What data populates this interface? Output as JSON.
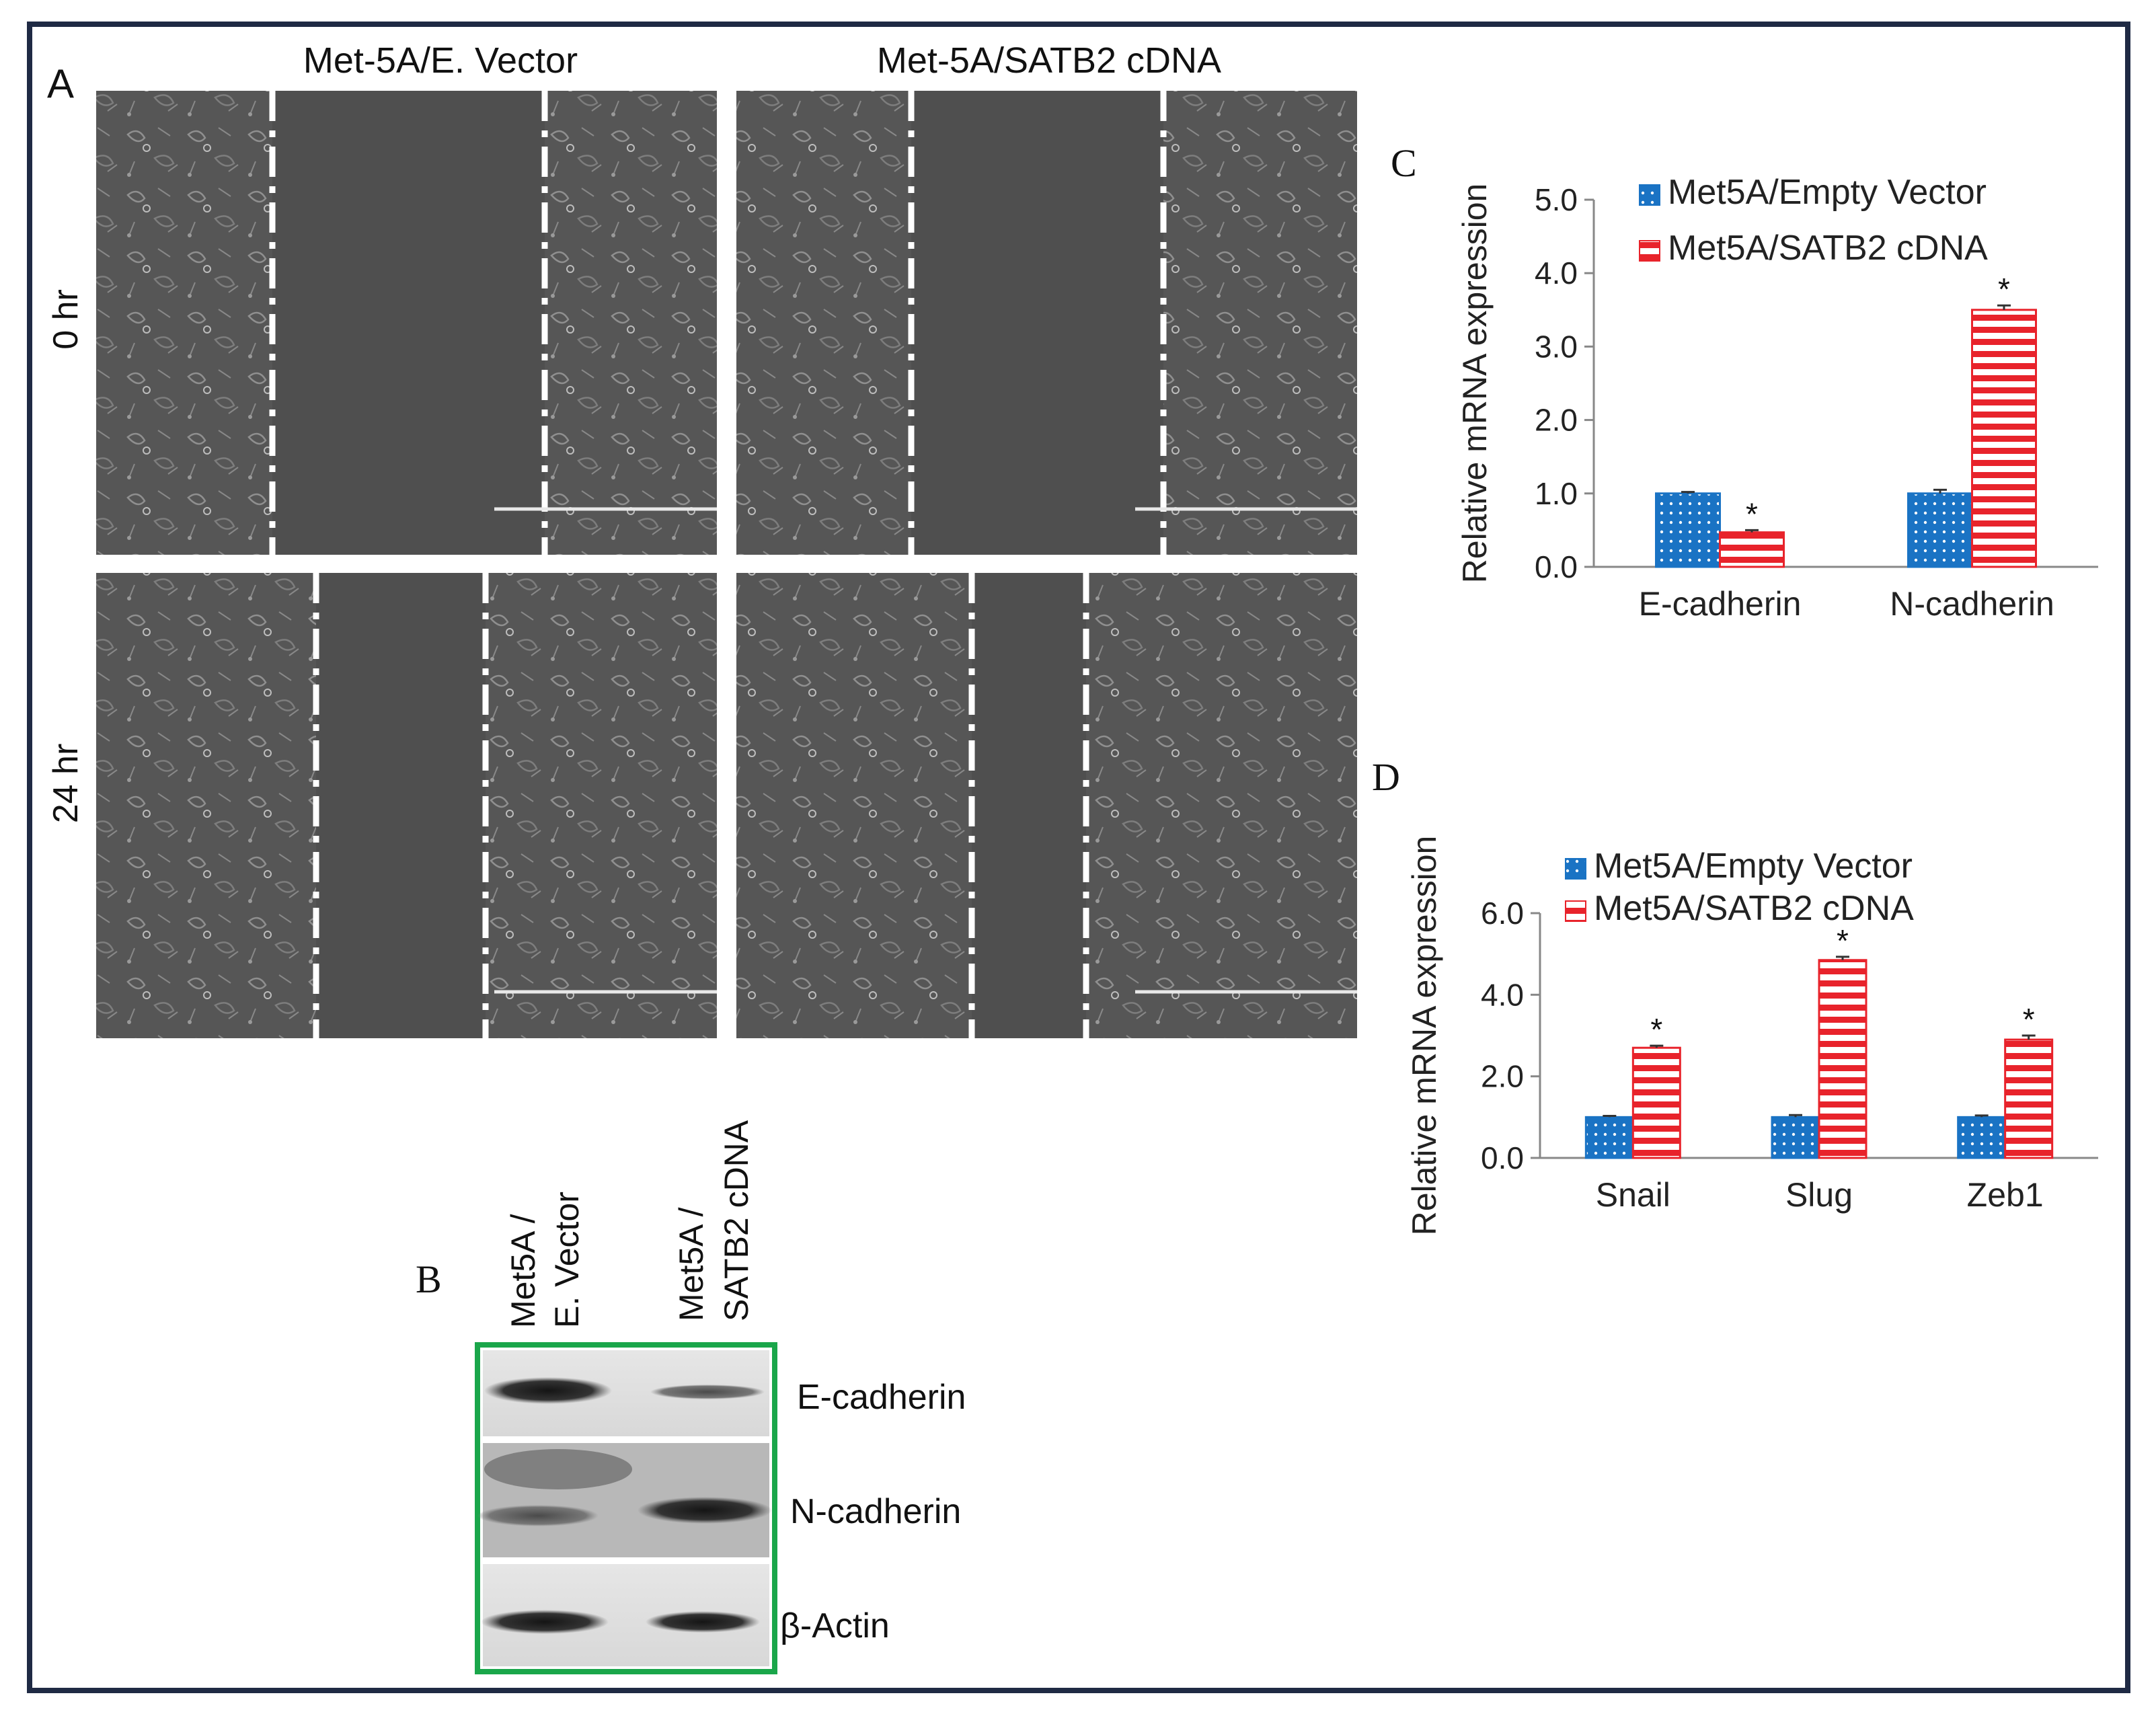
{
  "panel_labels": {
    "A": "A",
    "B": "B",
    "C": "C",
    "D": "D"
  },
  "panel_a": {
    "columns": [
      "Met-5A/E. Vector",
      "Met-5A/SATB2 cDNA"
    ],
    "rows": [
      "0 hr",
      "24 hr"
    ]
  },
  "panel_b": {
    "lane_labels": [
      {
        "line1": "Met5A /",
        "line2": "E. Vector"
      },
      {
        "line1": "Met5A /",
        "line2": "SATB2 cDNA"
      }
    ],
    "blot_labels": [
      "E-cadherin",
      "N-cadherin",
      "β-Actin"
    ],
    "frame_color": "#1aa64a"
  },
  "colors": {
    "empty_vector": "#1a73c4",
    "satb2": "#e8232b",
    "frame": "#1f2a44"
  },
  "chart_data": [
    {
      "type": "bar",
      "panel": "C",
      "ylabel": "Relative  mRNA  expression",
      "categories": [
        "E-cadherin",
        "N-cadherin"
      ],
      "ylim": [
        0,
        5
      ],
      "yticks": [
        "0.0",
        "1.0",
        "2.0",
        "3.0",
        "4.0",
        "5.0"
      ],
      "series": [
        {
          "name": "Met5A/Empty Vector",
          "values": [
            1.0,
            1.0
          ],
          "errors": [
            0.02,
            0.05
          ]
        },
        {
          "name": "Met5A/SATB2 cDNA",
          "values": [
            0.47,
            3.5
          ],
          "errors": [
            0.03,
            0.06
          ]
        }
      ],
      "annotations": [
        {
          "category": "E-cadherin",
          "series": "Met5A/SATB2 cDNA",
          "text": "*"
        },
        {
          "category": "N-cadherin",
          "series": "Met5A/SATB2 cDNA",
          "text": "*"
        }
      ],
      "legend": "top-left"
    },
    {
      "type": "bar",
      "panel": "D",
      "ylabel": "Relative  mRNA  expression",
      "categories": [
        "Snail",
        "Slug",
        "Zeb1"
      ],
      "ylim": [
        0,
        6
      ],
      "yticks": [
        "0.0",
        "2.0",
        "4.0",
        "6.0"
      ],
      "series": [
        {
          "name": "Met5A/Empty Vector",
          "values": [
            1.0,
            1.0,
            1.0
          ],
          "errors": [
            0.03,
            0.05,
            0.04
          ]
        },
        {
          "name": "Met5A/SATB2 cDNA",
          "values": [
            2.7,
            4.85,
            2.9
          ],
          "errors": [
            0.05,
            0.08,
            0.1
          ]
        }
      ],
      "annotations": [
        {
          "category": "Snail",
          "series": "Met5A/SATB2 cDNA",
          "text": "*"
        },
        {
          "category": "Slug",
          "series": "Met5A/SATB2 cDNA",
          "text": "*"
        },
        {
          "category": "Zeb1",
          "series": "Met5A/SATB2 cDNA",
          "text": "*"
        }
      ],
      "legend": "top-left"
    }
  ]
}
